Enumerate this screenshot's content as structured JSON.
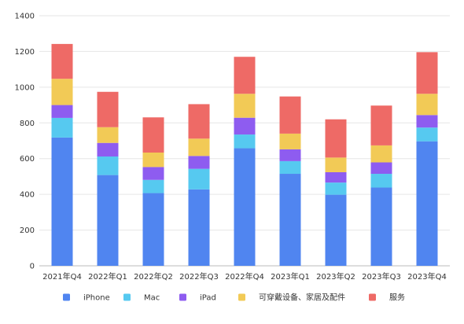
{
  "chart_data": {
    "type": "bar",
    "stacked": true,
    "categories": [
      "2021年Q4",
      "2022年Q1",
      "2022年Q2",
      "2022年Q3",
      "2022年Q4",
      "2023年Q1",
      "2023年Q2",
      "2023年Q3",
      "2023年Q4"
    ],
    "series": [
      {
        "name": "iPhone",
        "color": "#5085f0",
        "values": [
          718,
          508,
          407,
          428,
          658,
          515,
          398,
          438,
          697
        ]
      },
      {
        "name": "Mac",
        "color": "#56c9f0",
        "values": [
          110,
          104,
          74,
          115,
          77,
          71,
          68,
          77,
          77
        ]
      },
      {
        "name": "iPad",
        "color": "#8e5cf0",
        "values": [
          72,
          76,
          72,
          72,
          94,
          66,
          58,
          64,
          70
        ]
      },
      {
        "name": "可穿戴设备、家居及配件",
        "color": "#f2ca56",
        "values": [
          147,
          88,
          81,
          97,
          134,
          88,
          82,
          95,
          119
        ]
      },
      {
        "name": "服务",
        "color": "#ee6a66",
        "values": [
          195,
          198,
          197,
          193,
          207,
          208,
          214,
          223,
          233
        ]
      }
    ],
    "ylim": [
      0,
      1400
    ],
    "yticks": [
      0,
      200,
      400,
      600,
      800,
      1000,
      1200,
      1400
    ],
    "grid": true,
    "legend": "bottom",
    "title": "",
    "xlabel": "",
    "ylabel": ""
  }
}
